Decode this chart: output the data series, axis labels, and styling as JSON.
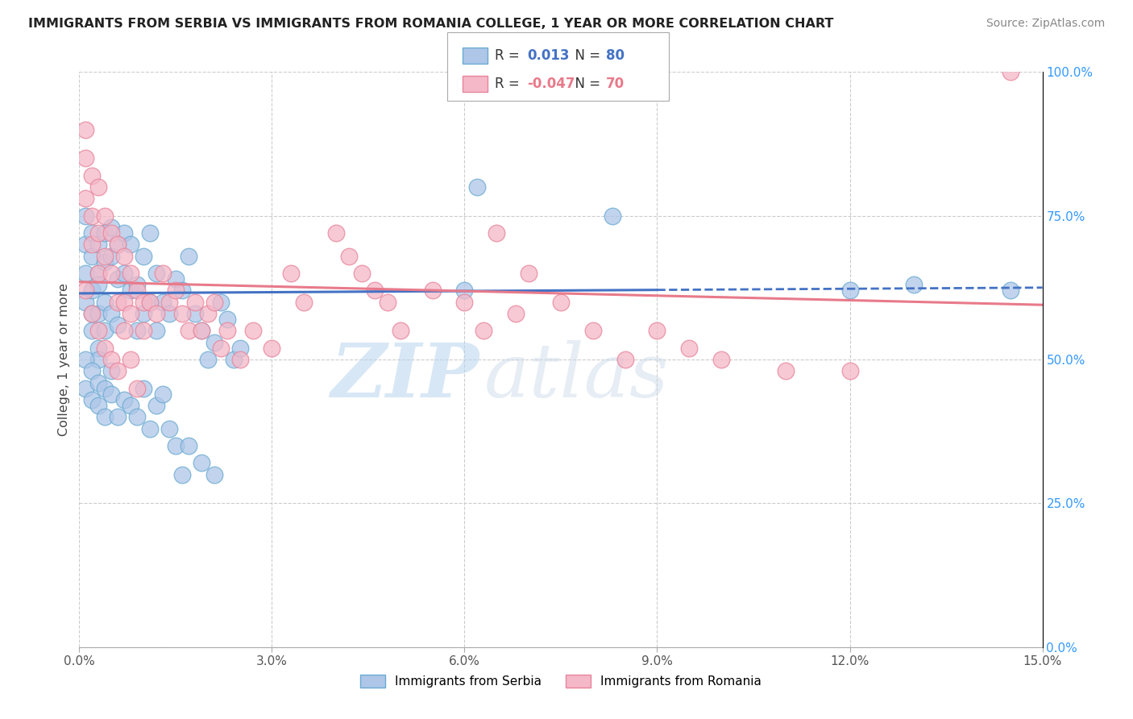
{
  "title": "IMMIGRANTS FROM SERBIA VS IMMIGRANTS FROM ROMANIA COLLEGE, 1 YEAR OR MORE CORRELATION CHART",
  "source": "Source: ZipAtlas.com",
  "ylabel": "College, 1 year or more",
  "xlim": [
    0.0,
    0.15
  ],
  "ylim": [
    0.0,
    1.0
  ],
  "xticks": [
    0.0,
    0.03,
    0.06,
    0.09,
    0.12,
    0.15
  ],
  "xticklabels": [
    "0.0%",
    "3.0%",
    "6.0%",
    "9.0%",
    "12.0%",
    "15.0%"
  ],
  "yticks": [
    0.0,
    0.25,
    0.5,
    0.75,
    1.0
  ],
  "yticklabels": [
    "0.0%",
    "25.0%",
    "50.0%",
    "75.0%",
    "100.0%"
  ],
  "serbia_color_fill": "#aec6e8",
  "serbia_color_edge": "#6aabd2",
  "romania_color_fill": "#f4b8c8",
  "romania_color_edge": "#e8849a",
  "serbia_line_color": "#4472c4",
  "romania_line_color": "#e87a8a",
  "serbia_R": 0.013,
  "serbia_N": 80,
  "romania_R": -0.047,
  "romania_N": 70,
  "serbia_trend_x0": 0.0,
  "serbia_trend_y0": 0.615,
  "serbia_trend_x1": 0.15,
  "serbia_trend_y1": 0.625,
  "serbia_trend_solid_end": 0.09,
  "romania_trend_x0": 0.0,
  "romania_trend_y0": 0.635,
  "romania_trend_x1": 0.15,
  "romania_trend_y1": 0.595,
  "watermark_zip": "ZIP",
  "watermark_atlas": "atlas",
  "background_color": "#ffffff",
  "grid_color": "#cccccc",
  "legend_R_color": "#4472c4",
  "legend_R2_color": "#e87a8a",
  "serbia_scatter_x": [
    0.001,
    0.001,
    0.001,
    0.001,
    0.002,
    0.002,
    0.002,
    0.002,
    0.002,
    0.003,
    0.003,
    0.003,
    0.003,
    0.003,
    0.003,
    0.004,
    0.004,
    0.004,
    0.004,
    0.005,
    0.005,
    0.005,
    0.006,
    0.006,
    0.006,
    0.007,
    0.007,
    0.008,
    0.008,
    0.009,
    0.009,
    0.01,
    0.01,
    0.011,
    0.011,
    0.012,
    0.012,
    0.013,
    0.014,
    0.015,
    0.016,
    0.017,
    0.018,
    0.019,
    0.02,
    0.021,
    0.022,
    0.023,
    0.024,
    0.025,
    0.001,
    0.001,
    0.002,
    0.002,
    0.003,
    0.003,
    0.004,
    0.004,
    0.005,
    0.005,
    0.006,
    0.007,
    0.008,
    0.009,
    0.01,
    0.011,
    0.012,
    0.013,
    0.014,
    0.015,
    0.016,
    0.017,
    0.019,
    0.021,
    0.06,
    0.062,
    0.083,
    0.12,
    0.13,
    0.145
  ],
  "serbia_scatter_y": [
    0.6,
    0.65,
    0.7,
    0.75,
    0.62,
    0.68,
    0.72,
    0.58,
    0.55,
    0.65,
    0.7,
    0.58,
    0.52,
    0.5,
    0.63,
    0.67,
    0.72,
    0.6,
    0.55,
    0.68,
    0.73,
    0.58,
    0.64,
    0.7,
    0.56,
    0.65,
    0.72,
    0.62,
    0.7,
    0.63,
    0.55,
    0.58,
    0.68,
    0.72,
    0.6,
    0.65,
    0.55,
    0.6,
    0.58,
    0.64,
    0.62,
    0.68,
    0.58,
    0.55,
    0.5,
    0.53,
    0.6,
    0.57,
    0.5,
    0.52,
    0.45,
    0.5,
    0.48,
    0.43,
    0.46,
    0.42,
    0.45,
    0.4,
    0.48,
    0.44,
    0.4,
    0.43,
    0.42,
    0.4,
    0.45,
    0.38,
    0.42,
    0.44,
    0.38,
    0.35,
    0.3,
    0.35,
    0.32,
    0.3,
    0.62,
    0.8,
    0.75,
    0.62,
    0.63,
    0.62
  ],
  "romania_scatter_x": [
    0.001,
    0.001,
    0.001,
    0.002,
    0.002,
    0.002,
    0.003,
    0.003,
    0.003,
    0.004,
    0.004,
    0.005,
    0.005,
    0.006,
    0.006,
    0.007,
    0.007,
    0.008,
    0.008,
    0.009,
    0.01,
    0.01,
    0.011,
    0.012,
    0.013,
    0.014,
    0.015,
    0.016,
    0.017,
    0.018,
    0.019,
    0.02,
    0.021,
    0.022,
    0.023,
    0.025,
    0.027,
    0.03,
    0.033,
    0.035,
    0.04,
    0.042,
    0.044,
    0.046,
    0.048,
    0.05,
    0.055,
    0.06,
    0.063,
    0.065,
    0.068,
    0.07,
    0.075,
    0.08,
    0.085,
    0.09,
    0.095,
    0.1,
    0.11,
    0.12,
    0.001,
    0.002,
    0.003,
    0.004,
    0.005,
    0.006,
    0.007,
    0.008,
    0.009,
    0.145
  ],
  "romania_scatter_y": [
    0.9,
    0.85,
    0.78,
    0.82,
    0.75,
    0.7,
    0.8,
    0.72,
    0.65,
    0.75,
    0.68,
    0.72,
    0.65,
    0.7,
    0.6,
    0.68,
    0.6,
    0.65,
    0.58,
    0.62,
    0.6,
    0.55,
    0.6,
    0.58,
    0.65,
    0.6,
    0.62,
    0.58,
    0.55,
    0.6,
    0.55,
    0.58,
    0.6,
    0.52,
    0.55,
    0.5,
    0.55,
    0.52,
    0.65,
    0.6,
    0.72,
    0.68,
    0.65,
    0.62,
    0.6,
    0.55,
    0.62,
    0.6,
    0.55,
    0.72,
    0.58,
    0.65,
    0.6,
    0.55,
    0.5,
    0.55,
    0.52,
    0.5,
    0.48,
    0.48,
    0.62,
    0.58,
    0.55,
    0.52,
    0.5,
    0.48,
    0.55,
    0.5,
    0.45,
    1.0
  ]
}
